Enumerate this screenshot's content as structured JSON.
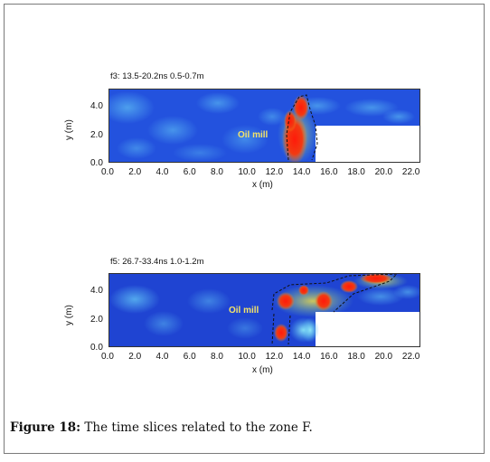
{
  "figure": {
    "caption_label": "Figure 18:",
    "caption_text": " The time slices related to the zone F."
  },
  "chart_data": [
    {
      "type": "heatmap",
      "title": "f3:  13.5-20.2ns  0.5-0.7m",
      "xlabel": "x (m)",
      "ylabel": "y (m)",
      "xlim": [
        0,
        22.8
      ],
      "ylim": [
        0,
        5
      ],
      "x_ticks": [
        "0.0",
        "2.0",
        "4.0",
        "6.0",
        "8.0",
        "10.0",
        "12.0",
        "14.0",
        "16.0",
        "18.0",
        "20.0",
        "22.0"
      ],
      "y_ticks": [
        "0.0",
        "2.0",
        "4.0"
      ],
      "annotation": "Oil mill",
      "colors": {
        "low": "#1a3fd6",
        "mid": "#4fb6f0",
        "high": "#e51b10"
      }
    },
    {
      "type": "heatmap",
      "title": "f5:  26.7-33.4ns  1.0-1.2m",
      "xlabel": "x (m)",
      "ylabel": "y (m)",
      "xlim": [
        0,
        22.8
      ],
      "ylim": [
        0,
        5
      ],
      "x_ticks": [
        "0.0",
        "2.0",
        "4.0",
        "6.0",
        "8.0",
        "10.0",
        "12.0",
        "14.0",
        "16.0",
        "18.0",
        "20.0",
        "22.0"
      ],
      "y_ticks": [
        "0.0",
        "2.0",
        "4.0"
      ],
      "annotation": "Oil mill",
      "colors": {
        "low": "#1a3fd6",
        "mid": "#4fb6f0",
        "high": "#e51b10"
      }
    }
  ]
}
